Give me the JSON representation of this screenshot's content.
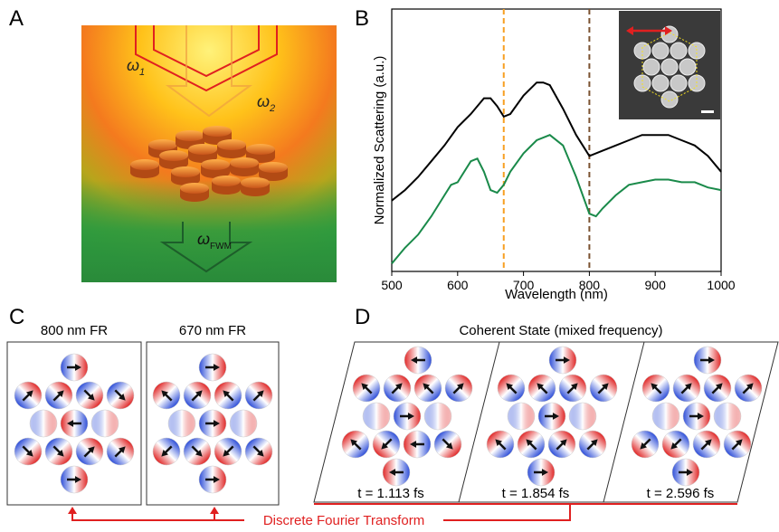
{
  "panels": {
    "a": "A",
    "b": "B",
    "c": "C",
    "d": "D"
  },
  "panel_a": {
    "omega1": {
      "symbol": "ω",
      "sub": "1"
    },
    "omega2": {
      "symbol": "ω",
      "sub": "2"
    },
    "omega_fwm": {
      "symbol": "ω",
      "sub": "FWM"
    }
  },
  "chart_data": {
    "type": "line",
    "xlabel": "Wavelength (nm)",
    "ylabel": "Normalized Scattering (a.u.)",
    "xlim": [
      500,
      1000
    ],
    "xticks": [
      500,
      600,
      700,
      800,
      900,
      1000
    ],
    "ylim": [
      0,
      1
    ],
    "vlines": [
      {
        "value": 670,
        "color": "#f7a023"
      },
      {
        "value": 800,
        "color": "#7a5230"
      }
    ],
    "series": [
      {
        "color": "#000000",
        "x": [
          500,
          520,
          540,
          560,
          580,
          600,
          620,
          640,
          650,
          660,
          670,
          680,
          700,
          720,
          730,
          740,
          760,
          780,
          800,
          820,
          840,
          860,
          880,
          900,
          920,
          940,
          960,
          980,
          1000
        ],
        "values": [
          0.27,
          0.31,
          0.36,
          0.42,
          0.48,
          0.55,
          0.6,
          0.66,
          0.66,
          0.63,
          0.59,
          0.6,
          0.67,
          0.72,
          0.72,
          0.71,
          0.62,
          0.52,
          0.44,
          0.46,
          0.48,
          0.5,
          0.52,
          0.52,
          0.52,
          0.5,
          0.48,
          0.44,
          0.38
        ]
      },
      {
        "color": "#1a8a4a",
        "x": [
          500,
          520,
          540,
          560,
          580,
          590,
          600,
          620,
          630,
          640,
          650,
          660,
          670,
          680,
          700,
          720,
          740,
          760,
          780,
          800,
          810,
          820,
          840,
          860,
          880,
          900,
          920,
          940,
          960,
          980,
          1000
        ],
        "values": [
          0.03,
          0.09,
          0.14,
          0.21,
          0.29,
          0.33,
          0.34,
          0.42,
          0.43,
          0.38,
          0.31,
          0.3,
          0.33,
          0.38,
          0.45,
          0.5,
          0.52,
          0.48,
          0.36,
          0.22,
          0.21,
          0.24,
          0.29,
          0.33,
          0.34,
          0.35,
          0.35,
          0.34,
          0.34,
          0.32,
          0.31
        ]
      }
    ]
  },
  "panel_c": {
    "titles": [
      "800 nm FR",
      "670 nm FR"
    ]
  },
  "panel_d": {
    "title": "Coherent State (mixed frequency)",
    "times": [
      "t = 1.113 fs",
      "t = 1.854 fs",
      "t = 2.596 fs"
    ]
  },
  "transform_label": "Discrete Fourier Transform"
}
